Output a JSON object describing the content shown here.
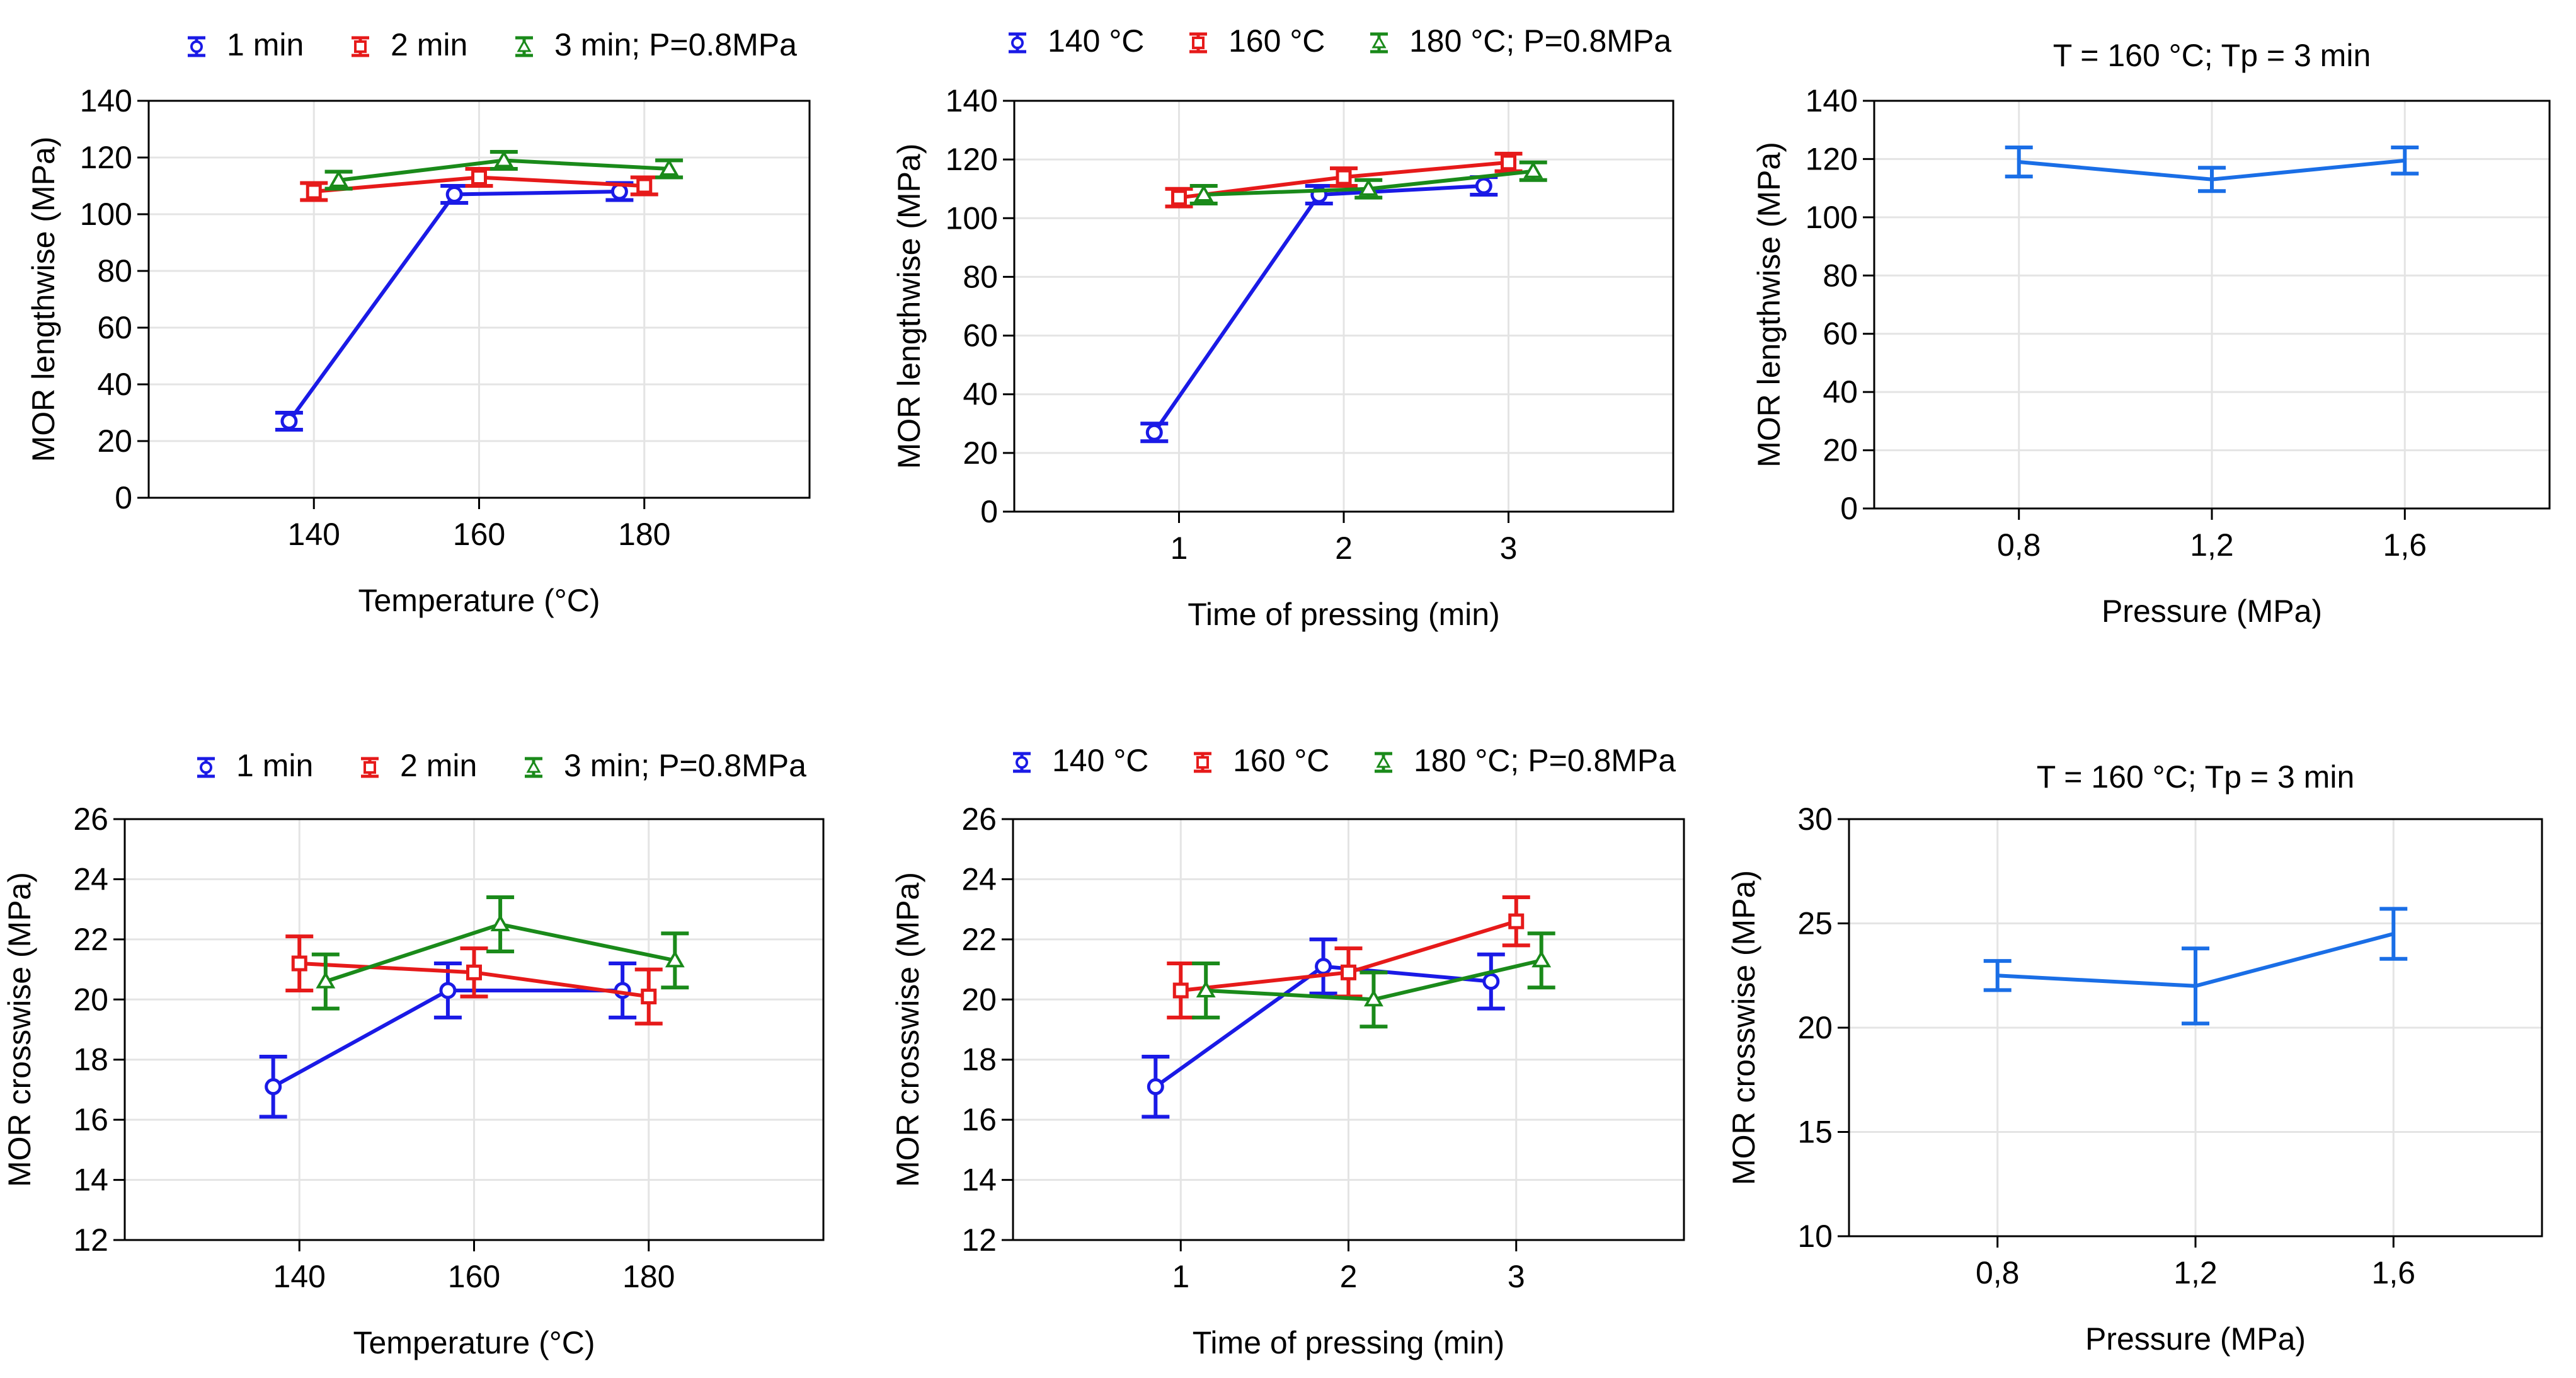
{
  "chart_data": [
    {
      "type": "line",
      "id": "top-temperature",
      "title": "",
      "legend_suffix": "P=0.8MPa",
      "xlabel": "Temperature (°C)",
      "ylabel": "MOR lengthwise (MPa)",
      "xlim": [
        120,
        200
      ],
      "ylim": [
        0,
        140
      ],
      "xticks": [
        "140",
        "160",
        "180"
      ],
      "xtick_values": [
        140,
        160,
        180
      ],
      "yticks": [
        0,
        20,
        40,
        60,
        80,
        100,
        120,
        140
      ],
      "grid": true,
      "series": [
        {
          "name": "1 min",
          "color": "#1a1ae6",
          "marker": "circle",
          "x": [
            137,
            157,
            177
          ],
          "y": [
            27,
            107,
            108
          ],
          "err": [
            3,
            3,
            3
          ]
        },
        {
          "name": "2 min",
          "color": "#e61a1a",
          "marker": "square",
          "x": [
            140,
            160,
            180
          ],
          "y": [
            108,
            113,
            110
          ],
          "err": [
            3,
            3,
            3
          ]
        },
        {
          "name": "3 min",
          "color": "#1a8a1a",
          "marker": "triangle",
          "x": [
            143,
            163,
            183
          ],
          "y": [
            112,
            119,
            116
          ],
          "err": [
            3,
            3,
            3
          ]
        }
      ]
    },
    {
      "type": "line",
      "id": "top-time",
      "title": "",
      "legend_suffix": "P=0.8MPa",
      "xlabel": "Time of  pressing (min)",
      "ylabel": "MOR lengthwise (MPa)",
      "xlim": [
        0,
        4
      ],
      "ylim": [
        0,
        140
      ],
      "xticks": [
        "1",
        "2",
        "3"
      ],
      "xtick_values": [
        1,
        2,
        3
      ],
      "yticks": [
        0,
        20,
        40,
        60,
        80,
        100,
        120,
        140
      ],
      "grid": true,
      "series": [
        {
          "name": "140 °C",
          "color": "#1a1ae6",
          "marker": "circle",
          "x": [
            0.85,
            1.85,
            2.85
          ],
          "y": [
            27,
            108,
            111
          ],
          "err": [
            3,
            3,
            3
          ]
        },
        {
          "name": "160 °C",
          "color": "#e61a1a",
          "marker": "square",
          "x": [
            1,
            2,
            3
          ],
          "y": [
            107,
            114,
            119
          ],
          "err": [
            3,
            3,
            3
          ]
        },
        {
          "name": "180 °C",
          "color": "#1a8a1a",
          "marker": "triangle",
          "x": [
            1.15,
            2.15,
            3.15
          ],
          "y": [
            108,
            110,
            116
          ],
          "err": [
            3,
            3,
            3
          ]
        }
      ]
    },
    {
      "type": "line",
      "id": "top-pressure",
      "title": "T = 160 °C;  Tp = 3 min",
      "xlabel": "Pressure (MPa)",
      "ylabel": "MOR lengthwise (MPa)",
      "xlim": [
        0.5,
        1.9
      ],
      "ylim": [
        0,
        140
      ],
      "xticks": [
        "0,8",
        "1,2",
        "1,6"
      ],
      "xtick_values": [
        0.8,
        1.2,
        1.6
      ],
      "yticks": [
        0,
        20,
        40,
        60,
        80,
        100,
        120,
        140
      ],
      "grid": true,
      "series": [
        {
          "name": "",
          "color": "#1a6ee6",
          "marker": "none",
          "x": [
            0.8,
            1.2,
            1.6
          ],
          "y": [
            119,
            113,
            119.5
          ],
          "err": [
            5,
            4,
            4.5
          ]
        }
      ]
    },
    {
      "type": "line",
      "id": "bottom-temperature",
      "title": "",
      "legend_suffix": "P=0.8MPa",
      "xlabel": "Temperature (°C)",
      "ylabel": "MOR crosswise (MPa)",
      "xlim": [
        120,
        200
      ],
      "ylim": [
        12,
        26
      ],
      "xticks": [
        "140",
        "160",
        "180"
      ],
      "xtick_values": [
        140,
        160,
        180
      ],
      "yticks": [
        12,
        14,
        16,
        18,
        20,
        22,
        24,
        26
      ],
      "grid": true,
      "series": [
        {
          "name": "1 min",
          "color": "#1a1ae6",
          "marker": "circle",
          "x": [
            137,
            157,
            177
          ],
          "y": [
            17.1,
            20.3,
            20.3
          ],
          "err": [
            1.0,
            0.9,
            0.9
          ]
        },
        {
          "name": "2 min",
          "color": "#e61a1a",
          "marker": "square",
          "x": [
            140,
            160,
            180
          ],
          "y": [
            21.2,
            20.9,
            20.1
          ],
          "err": [
            0.9,
            0.8,
            0.9
          ]
        },
        {
          "name": "3 min",
          "color": "#1a8a1a",
          "marker": "triangle",
          "x": [
            143,
            163,
            183
          ],
          "y": [
            20.6,
            22.5,
            21.3
          ],
          "err": [
            0.9,
            0.9,
            0.9
          ]
        }
      ]
    },
    {
      "type": "line",
      "id": "bottom-time",
      "title": "",
      "legend_suffix": "P=0.8MPa",
      "xlabel": "Time of  pressing (min)",
      "ylabel": "MOR crosswise (MPa)",
      "xlim": [
        0,
        4
      ],
      "ylim": [
        12,
        26
      ],
      "xticks": [
        "1",
        "2",
        "3"
      ],
      "xtick_values": [
        1,
        2,
        3
      ],
      "yticks": [
        12,
        14,
        16,
        18,
        20,
        22,
        24,
        26
      ],
      "grid": true,
      "series": [
        {
          "name": "140 °C",
          "color": "#1a1ae6",
          "marker": "circle",
          "x": [
            0.85,
            1.85,
            2.85
          ],
          "y": [
            17.1,
            21.1,
            20.6
          ],
          "err": [
            1.0,
            0.9,
            0.9
          ]
        },
        {
          "name": "160 °C",
          "color": "#e61a1a",
          "marker": "square",
          "x": [
            1,
            2,
            3
          ],
          "y": [
            20.3,
            20.9,
            22.6
          ],
          "err": [
            0.9,
            0.8,
            0.8
          ]
        },
        {
          "name": "180 °C",
          "color": "#1a8a1a",
          "marker": "triangle",
          "x": [
            1.15,
            2.15,
            3.15
          ],
          "y": [
            20.3,
            20.0,
            21.3
          ],
          "err": [
            0.9,
            0.9,
            0.9
          ]
        }
      ]
    },
    {
      "type": "line",
      "id": "bottom-pressure",
      "title": "T = 160 °C;  Tp = 3 min",
      "xlabel": "Pressure (MPa)",
      "ylabel": "MOR crosswise (MPa)",
      "xlim": [
        0.5,
        1.9
      ],
      "ylim": [
        10,
        30
      ],
      "xticks": [
        "0,8",
        "1,2",
        "1,6"
      ],
      "xtick_values": [
        0.8,
        1.2,
        1.6
      ],
      "yticks": [
        10,
        15,
        20,
        25,
        30
      ],
      "grid": true,
      "series": [
        {
          "name": "",
          "color": "#1a6ee6",
          "marker": "none",
          "x": [
            0.8,
            1.2,
            1.6
          ],
          "y": [
            22.5,
            22.0,
            24.5
          ],
          "err": [
            0.7,
            1.8,
            1.2
          ]
        }
      ]
    }
  ]
}
